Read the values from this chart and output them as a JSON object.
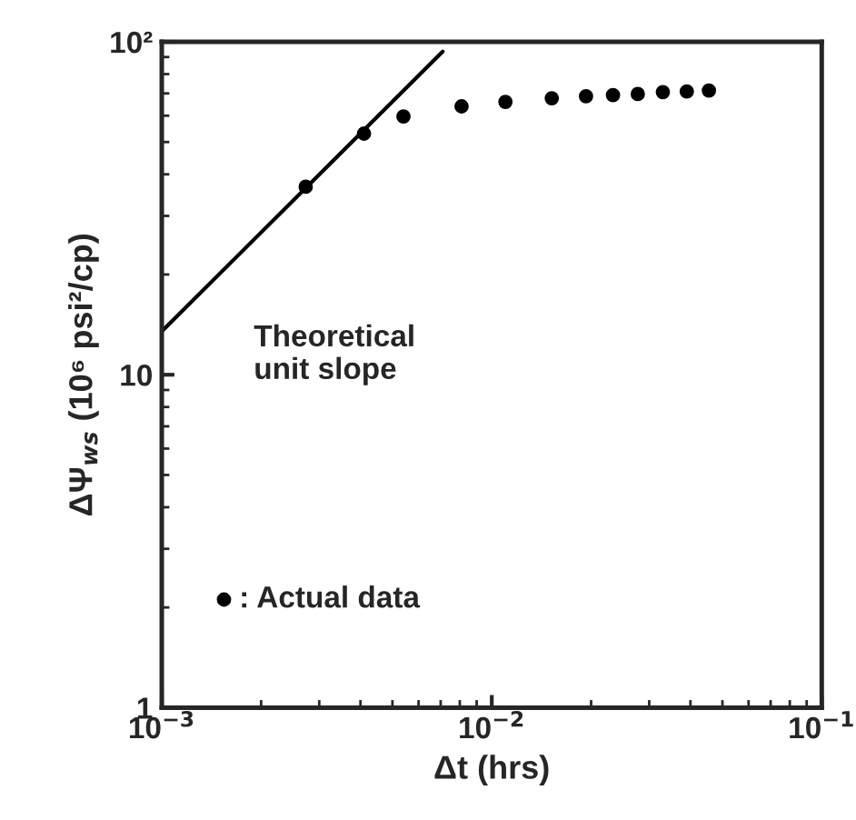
{
  "chart_data": {
    "type": "scatter",
    "xlabel": "Δt (hrs)",
    "ylabel": "ΔΨ$_{ws}$ (10⁶ psi²/cp)",
    "log": "xy",
    "xlim": [
      0.001,
      0.1
    ],
    "ylim": [
      1,
      100
    ],
    "xticks": [
      {
        "value": 0.001,
        "label": "10$^{−3}$"
      },
      {
        "value": 0.01,
        "label": "10$^{−2}$"
      },
      {
        "value": 0.1,
        "label": "10$^{−1}$"
      }
    ],
    "yticks": [
      1,
      10,
      {
        "value": 100,
        "label": "10²"
      }
    ],
    "grid": false,
    "legend": "bottom left",
    "series": [
      {
        "name": ": Actual data",
        "color": "#000000",
        "x": [
          0.00273,
          0.0041,
          0.0054,
          0.0081,
          0.011,
          0.0152,
          0.0193,
          0.0233,
          0.0277,
          0.033,
          0.039,
          0.0455
        ],
        "values": [
          36.7,
          53,
          59.7,
          64,
          66,
          67.7,
          68.6,
          69.2,
          69.7,
          70.6,
          70.9,
          71.4
        ],
        "marker": "circle"
      },
      {
        "name": "Theoretical\nunit slope",
        "type": "line",
        "marker": "none",
        "color": "#000000",
        "x": [
          0.001,
          0.0071
        ],
        "values": [
          13.5,
          93.5
        ]
      }
    ]
  }
}
